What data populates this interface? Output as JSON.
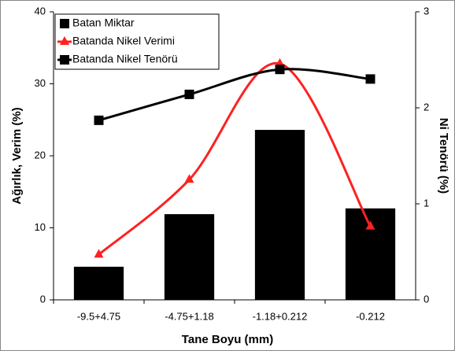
{
  "chart_data": {
    "type": "bar",
    "x_label": "Tane Boyu (mm)",
    "y_label": "Ağırlık, Verim (%)",
    "y2_label": "Ni Tenörü (%)",
    "categories": [
      "-9.5+4.75",
      "-4.75+1.18",
      "-1.18+0.212",
      "-0.212"
    ],
    "series": [
      {
        "name": "Batan Miktar",
        "type": "bar",
        "color": "#000000",
        "values": [
          4.6,
          11.9,
          23.6,
          12.7
        ]
      },
      {
        "name": "Batanda Nikel Verimi",
        "type": "line",
        "color": "#ff2020",
        "marker": "triangle",
        "values": [
          6.3,
          16.7,
          32.8,
          10.2
        ]
      },
      {
        "name": "Batanda Nikel Tenörü",
        "type": "line",
        "color": "#000000",
        "marker": "square",
        "axis": "y2",
        "values": [
          1.87,
          2.14,
          2.4,
          2.3
        ]
      }
    ],
    "ylim": [
      0,
      40
    ],
    "yticks": [
      0,
      10,
      20,
      30,
      40
    ],
    "y2lim": [
      0,
      3
    ],
    "y2ticks": [
      0,
      1,
      2,
      3
    ],
    "legend": "top-left"
  }
}
